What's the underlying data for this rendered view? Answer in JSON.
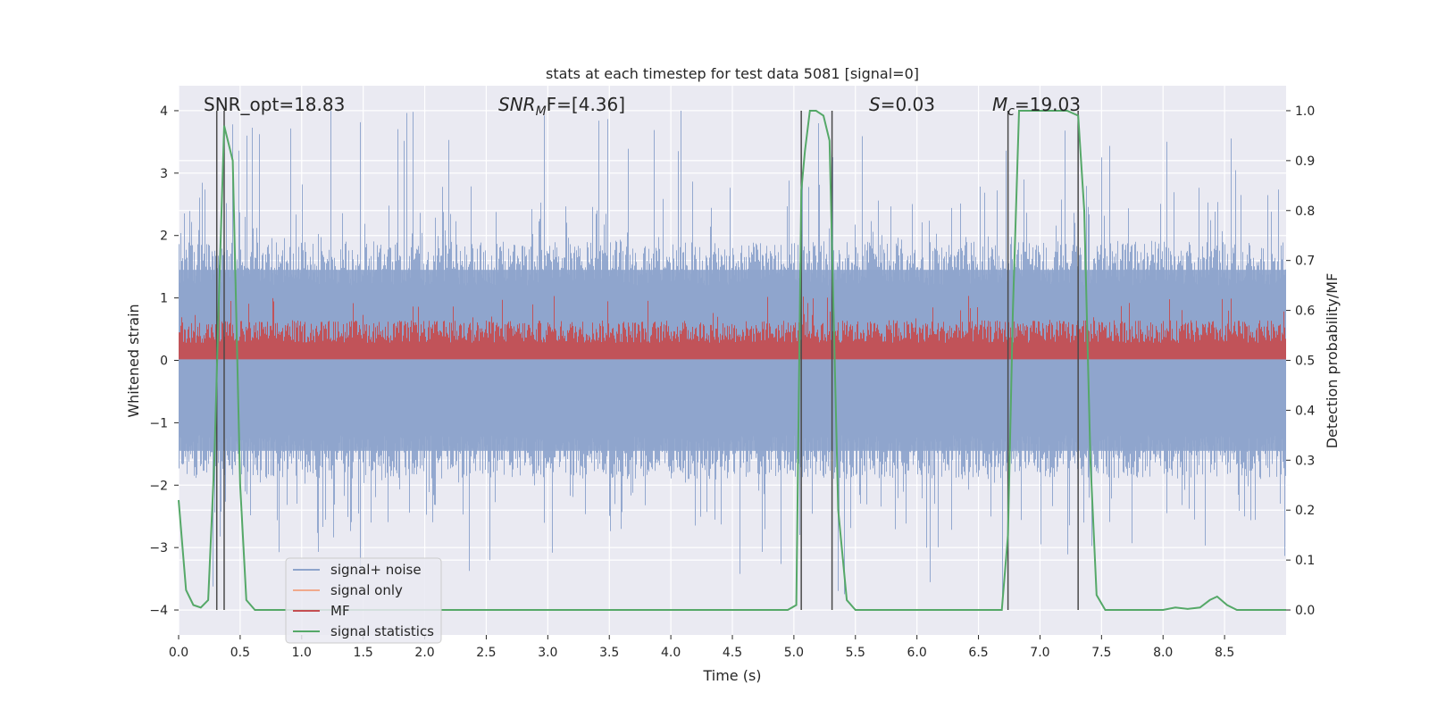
{
  "chart_data": {
    "type": "line",
    "title": "stats at each timestep for test data 5081 [signal=0]",
    "xlabel": "Time (s)",
    "ylabel": "Whitened strain",
    "y2label": "Detection probability/MF",
    "xlim": [
      0.0,
      9.0
    ],
    "ylim": [
      -4.4,
      4.4
    ],
    "y2lim": [
      -0.05,
      1.05
    ],
    "x_ticks": [
      "0.0",
      "0.5",
      "1.0",
      "1.5",
      "2.0",
      "2.5",
      "3.0",
      "3.5",
      "4.0",
      "4.5",
      "5.0",
      "5.5",
      "6.0",
      "6.5",
      "7.0",
      "7.5",
      "8.0",
      "8.5"
    ],
    "y_ticks": [
      "−4",
      "−3",
      "−2",
      "−1",
      "0",
      "1",
      "2",
      "3",
      "4"
    ],
    "y2_ticks": [
      "0.0",
      "0.1",
      "0.2",
      "0.3",
      "0.4",
      "0.5",
      "0.6",
      "0.7",
      "0.8",
      "0.9",
      "1.0"
    ],
    "grid": true,
    "legend_position": "lower-left",
    "annotations": [
      {
        "text": "SNR_opt=18.83",
        "style": "plain"
      },
      {
        "pre": "SNR",
        "sub": "M",
        "post": "F=[4.36]",
        "style": "italic-sub"
      },
      {
        "pre": "S",
        "sub": "",
        "post": "=0.03",
        "style": "italic"
      },
      {
        "pre": "M",
        "sub": "c",
        "post": "=19.03",
        "style": "italic-sub"
      }
    ],
    "vertical_markers_s": [
      0.31,
      0.37,
      5.06,
      5.31,
      6.74,
      7.31
    ],
    "series": [
      {
        "name": "signal+ noise",
        "color": "#8ea4cc",
        "axis": "left",
        "note_kind": "noise",
        "amplitude_typical": 1.6,
        "amplitude_max": 4.0
      },
      {
        "name": "signal only",
        "color": "#f0a98c",
        "axis": "left",
        "values": []
      },
      {
        "name": "MF",
        "color": "#c44e52",
        "axis": "right",
        "range": [
          0.5,
          0.63
        ]
      },
      {
        "name": "signal statistics",
        "color": "#55a868",
        "axis": "right",
        "x": [
          0.0,
          0.06,
          0.12,
          0.18,
          0.24,
          0.29,
          0.33,
          0.37,
          0.44,
          0.5,
          0.55,
          0.62,
          1.0,
          2.0,
          3.0,
          4.0,
          4.5,
          4.95,
          5.02,
          5.06,
          5.09,
          5.13,
          5.18,
          5.24,
          5.29,
          5.36,
          5.43,
          5.5,
          5.6,
          6.0,
          6.4,
          6.69,
          6.74,
          6.78,
          6.83,
          6.88,
          6.95,
          7.1,
          7.22,
          7.31,
          7.36,
          7.41,
          7.46,
          7.53,
          7.6,
          8.0,
          8.1,
          8.2,
          8.3,
          8.38,
          8.44,
          8.52,
          8.6,
          8.7,
          9.0
        ],
        "values": [
          0.22,
          0.04,
          0.01,
          0.005,
          0.02,
          0.3,
          0.65,
          0.97,
          0.9,
          0.25,
          0.02,
          0.0,
          0.0,
          0.0,
          0.0,
          0.0,
          0.0,
          0.0,
          0.01,
          0.84,
          0.92,
          1.0,
          1.0,
          0.99,
          0.94,
          0.2,
          0.02,
          0.0,
          0.0,
          0.0,
          0.0,
          0.0,
          0.15,
          0.6,
          1.0,
          1.0,
          1.0,
          1.0,
          1.0,
          0.99,
          0.8,
          0.3,
          0.03,
          0.0,
          0.0,
          0.0,
          0.005,
          0.002,
          0.005,
          0.02,
          0.027,
          0.01,
          0.0,
          0.0,
          0.0
        ]
      }
    ]
  }
}
